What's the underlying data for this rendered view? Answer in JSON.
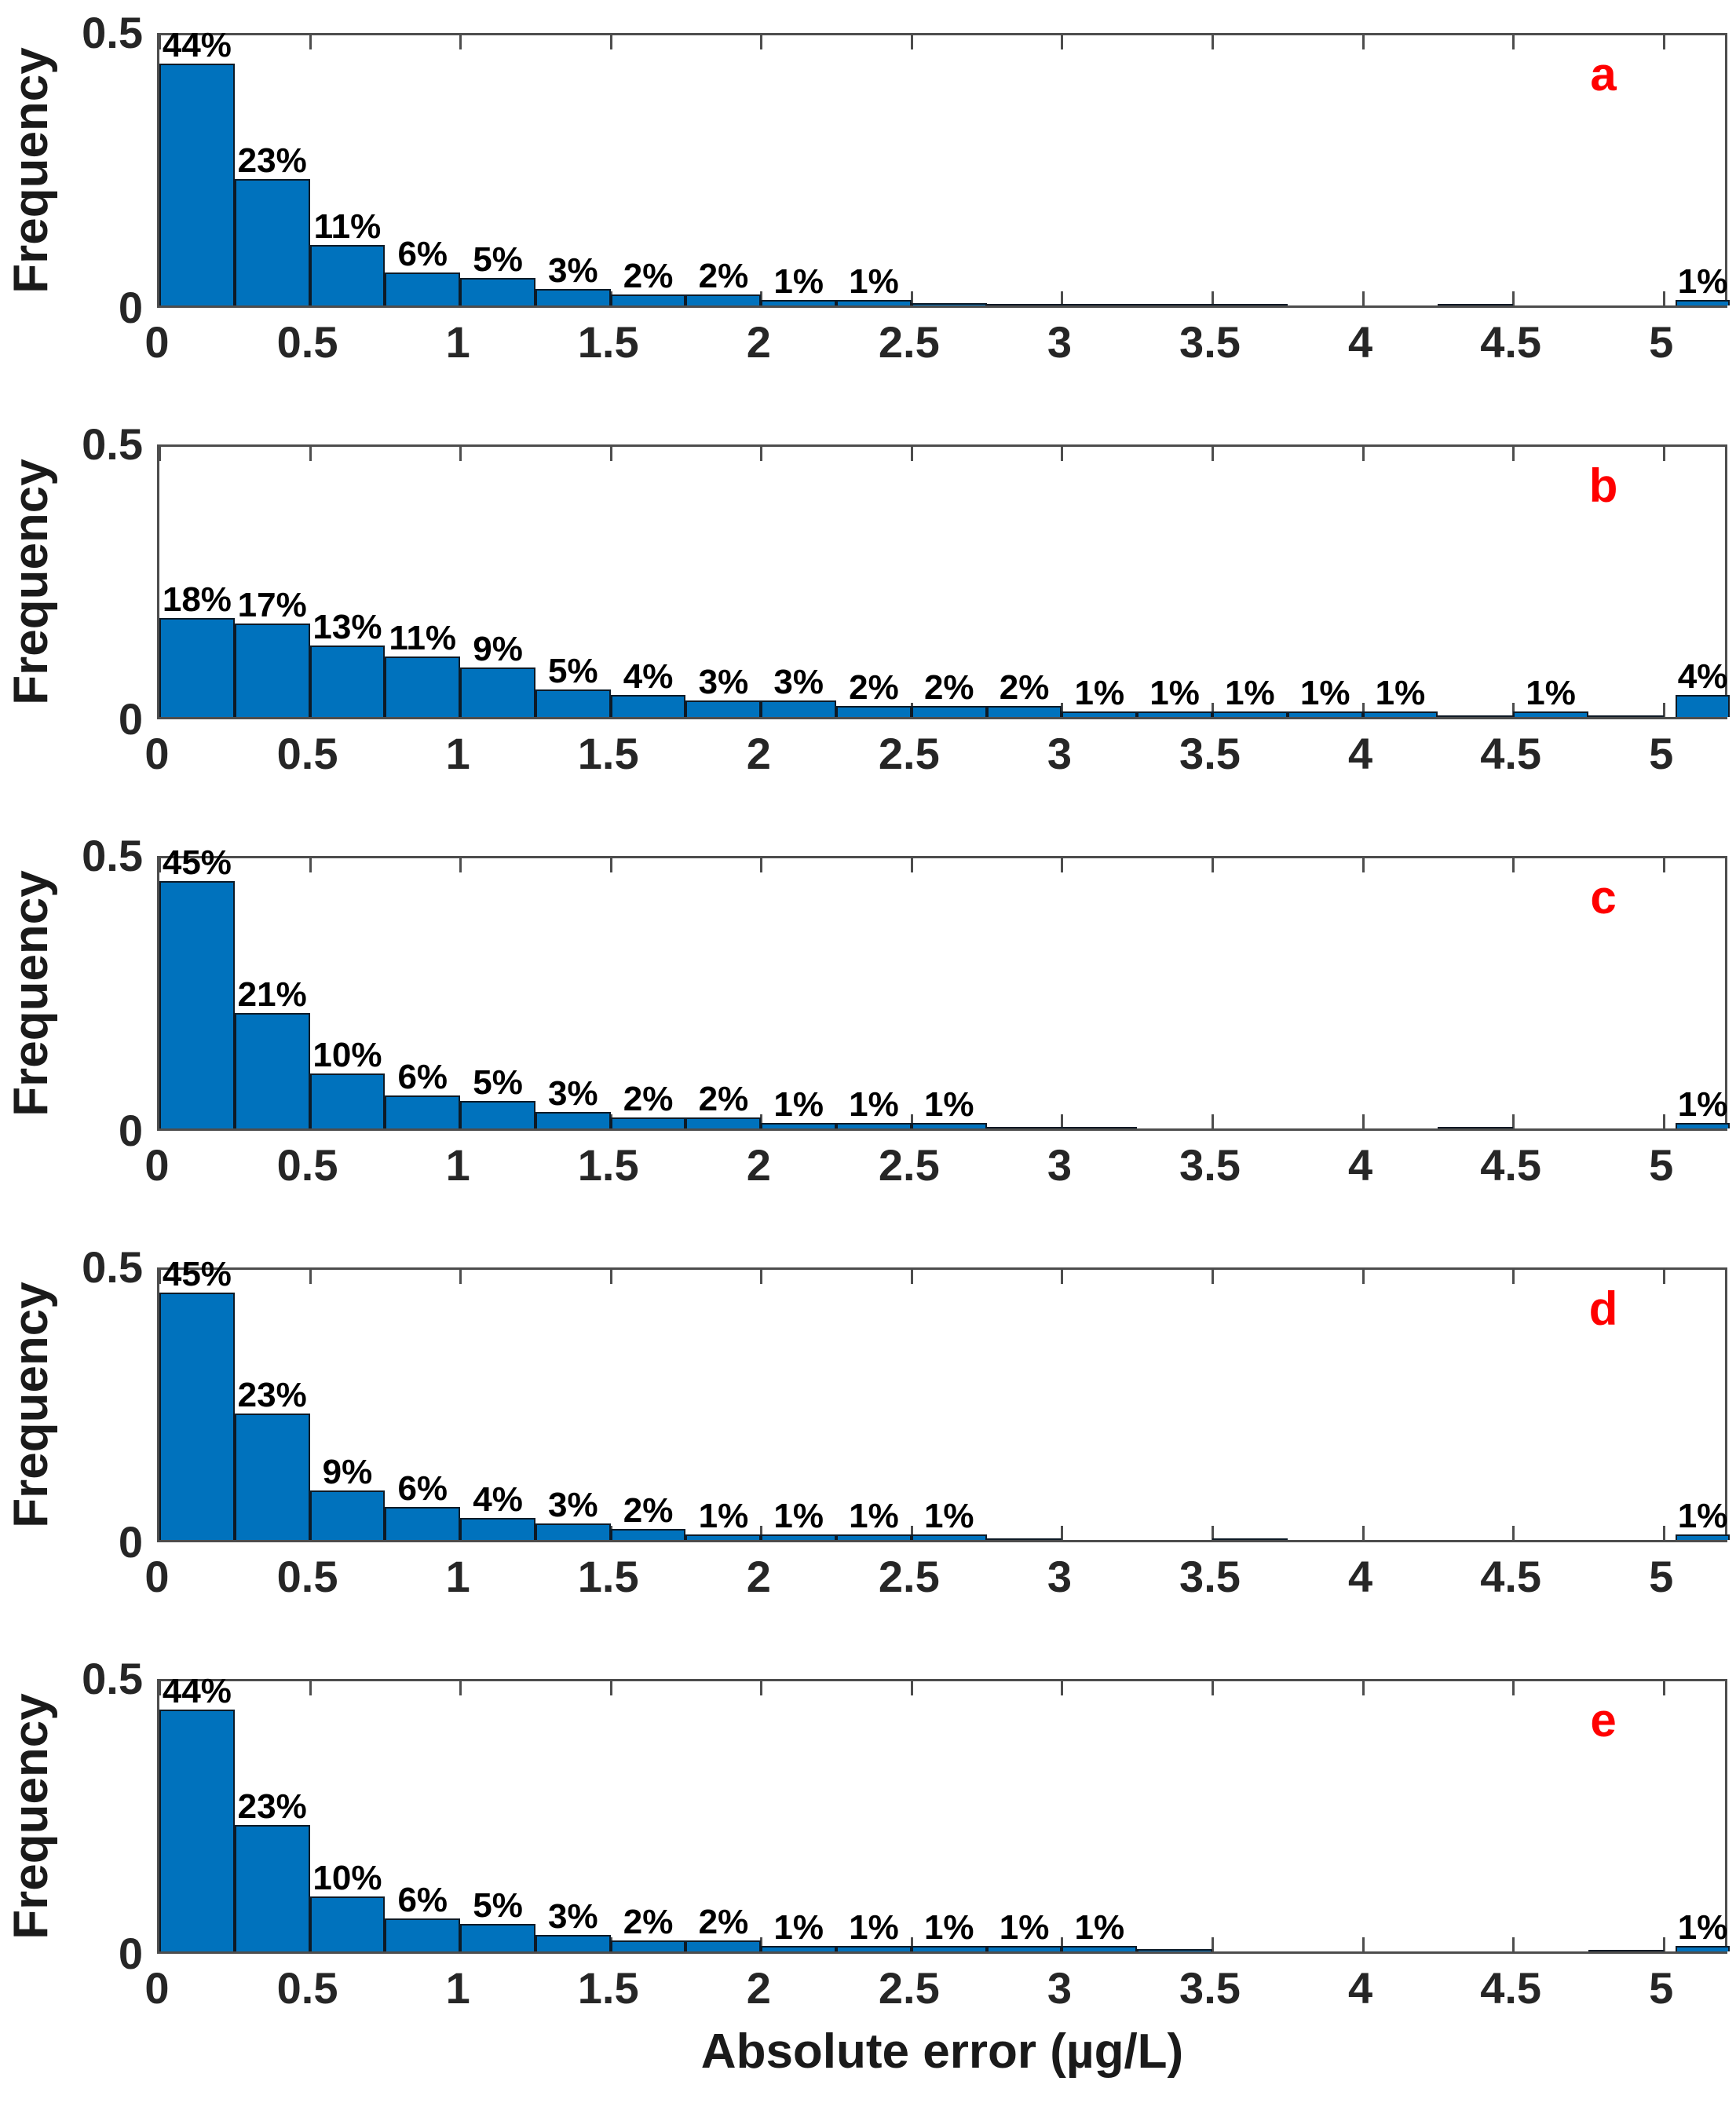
{
  "figure": {
    "xlabel": "Absolute error (µg/L)",
    "ylabel": "Frequency",
    "x_tick_labels": [
      "0",
      "0.5",
      "1",
      "1.5",
      "2",
      "2.5",
      "3",
      "3.5",
      "4",
      "4.5",
      "5"
    ],
    "x_tick_values": [
      0,
      0.5,
      1,
      1.5,
      2,
      2.5,
      3,
      3.5,
      4,
      4.5,
      5
    ],
    "y_tick_labels": [
      "0",
      "0.5"
    ],
    "colors": {
      "bar_face": "#0072BD",
      "bar_edge": "#0d1a26",
      "axis": "#4d4d4d",
      "tick_text": "#262626",
      "panel_letter": "#ff0000"
    }
  },
  "chart_data": [
    {
      "type": "bar",
      "panel_letter": "a",
      "title": "",
      "xlabel": "",
      "ylabel": "Frequency",
      "xlim": [
        0,
        5.22
      ],
      "ylim": [
        0,
        0.5
      ],
      "bin_width": 0.25,
      "grid": false,
      "bars": [
        {
          "x": 0.0,
          "f": 0.44,
          "label": "44%"
        },
        {
          "x": 0.25,
          "f": 0.23,
          "label": "23%"
        },
        {
          "x": 0.5,
          "f": 0.11,
          "label": "11%"
        },
        {
          "x": 0.75,
          "f": 0.06,
          "label": "6%"
        },
        {
          "x": 1.0,
          "f": 0.05,
          "label": "5%"
        },
        {
          "x": 1.25,
          "f": 0.03,
          "label": "3%"
        },
        {
          "x": 1.5,
          "f": 0.02,
          "label": "2%"
        },
        {
          "x": 1.75,
          "f": 0.02,
          "label": "2%"
        },
        {
          "x": 2.0,
          "f": 0.01,
          "label": "1%"
        },
        {
          "x": 2.25,
          "f": 0.01,
          "label": "1%"
        },
        {
          "x": 2.5,
          "f": 0.004
        },
        {
          "x": 2.75,
          "f": 0.003
        },
        {
          "x": 3.0,
          "f": 0.002
        },
        {
          "x": 3.25,
          "f": 0.003
        },
        {
          "x": 3.5,
          "f": 0.002
        },
        {
          "x": 4.25,
          "f": 0.003
        },
        {
          "x": 5.04,
          "w": 0.18,
          "f": 0.01,
          "label": "1%"
        }
      ]
    },
    {
      "type": "bar",
      "panel_letter": "b",
      "title": "",
      "xlabel": "",
      "ylabel": "Frequency",
      "xlim": [
        0,
        5.22
      ],
      "ylim": [
        0,
        0.5
      ],
      "bin_width": 0.25,
      "grid": false,
      "bars": [
        {
          "x": 0.0,
          "f": 0.18,
          "label": "18%"
        },
        {
          "x": 0.25,
          "f": 0.17,
          "label": "17%"
        },
        {
          "x": 0.5,
          "f": 0.13,
          "label": "13%"
        },
        {
          "x": 0.75,
          "f": 0.11,
          "label": "11%"
        },
        {
          "x": 1.0,
          "f": 0.09,
          "label": "9%"
        },
        {
          "x": 1.25,
          "f": 0.05,
          "label": "5%"
        },
        {
          "x": 1.5,
          "f": 0.04,
          "label": "4%"
        },
        {
          "x": 1.75,
          "f": 0.03,
          "label": "3%"
        },
        {
          "x": 2.0,
          "f": 0.03,
          "label": "3%"
        },
        {
          "x": 2.25,
          "f": 0.02,
          "label": "2%"
        },
        {
          "x": 2.5,
          "f": 0.02,
          "label": "2%"
        },
        {
          "x": 2.75,
          "f": 0.02,
          "label": "2%"
        },
        {
          "x": 3.0,
          "f": 0.01,
          "label": "1%"
        },
        {
          "x": 3.25,
          "f": 0.01,
          "label": "1%"
        },
        {
          "x": 3.5,
          "f": 0.01,
          "label": "1%"
        },
        {
          "x": 3.75,
          "f": 0.01,
          "label": "1%"
        },
        {
          "x": 4.0,
          "f": 0.01,
          "label": "1%"
        },
        {
          "x": 4.25,
          "f": 0.003
        },
        {
          "x": 4.5,
          "f": 0.01,
          "label": "1%"
        },
        {
          "x": 4.75,
          "f": 0.002
        },
        {
          "x": 5.04,
          "w": 0.18,
          "f": 0.04,
          "label": "4%"
        }
      ]
    },
    {
      "type": "bar",
      "panel_letter": "c",
      "title": "",
      "xlabel": "",
      "ylabel": "Frequency",
      "xlim": [
        0,
        5.22
      ],
      "ylim": [
        0,
        0.5
      ],
      "bin_width": 0.25,
      "grid": false,
      "bars": [
        {
          "x": 0.0,
          "f": 0.45,
          "label": "45%"
        },
        {
          "x": 0.25,
          "f": 0.21,
          "label": "21%"
        },
        {
          "x": 0.5,
          "f": 0.1,
          "label": "10%"
        },
        {
          "x": 0.75,
          "f": 0.06,
          "label": "6%"
        },
        {
          "x": 1.0,
          "f": 0.05,
          "label": "5%"
        },
        {
          "x": 1.25,
          "f": 0.03,
          "label": "3%"
        },
        {
          "x": 1.5,
          "f": 0.02,
          "label": "2%"
        },
        {
          "x": 1.75,
          "f": 0.02,
          "label": "2%"
        },
        {
          "x": 2.0,
          "f": 0.01,
          "label": "1%"
        },
        {
          "x": 2.25,
          "f": 0.01,
          "label": "1%"
        },
        {
          "x": 2.5,
          "f": 0.01,
          "label": "1%"
        },
        {
          "x": 2.75,
          "f": 0.002
        },
        {
          "x": 3.0,
          "f": 0.003
        },
        {
          "x": 4.25,
          "f": 0.002
        },
        {
          "x": 5.04,
          "w": 0.18,
          "f": 0.01,
          "label": "1%"
        }
      ]
    },
    {
      "type": "bar",
      "panel_letter": "d",
      "title": "",
      "xlabel": "",
      "ylabel": "Frequency",
      "xlim": [
        0,
        5.22
      ],
      "ylim": [
        0,
        0.5
      ],
      "bin_width": 0.25,
      "grid": false,
      "bars": [
        {
          "x": 0.0,
          "f": 0.45,
          "label": "45%"
        },
        {
          "x": 0.25,
          "f": 0.23,
          "label": "23%"
        },
        {
          "x": 0.5,
          "f": 0.09,
          "label": "9%"
        },
        {
          "x": 0.75,
          "f": 0.06,
          "label": "6%"
        },
        {
          "x": 1.0,
          "f": 0.04,
          "label": "4%"
        },
        {
          "x": 1.25,
          "f": 0.03,
          "label": "3%"
        },
        {
          "x": 1.5,
          "f": 0.02,
          "label": "2%"
        },
        {
          "x": 1.75,
          "f": 0.01,
          "label": "1%"
        },
        {
          "x": 2.0,
          "f": 0.01,
          "label": "1%"
        },
        {
          "x": 2.25,
          "f": 0.01,
          "label": "1%"
        },
        {
          "x": 2.5,
          "f": 0.01,
          "label": "1%"
        },
        {
          "x": 2.75,
          "f": 0.003
        },
        {
          "x": 3.5,
          "f": 0.002
        },
        {
          "x": 5.04,
          "w": 0.18,
          "f": 0.01,
          "label": "1%"
        }
      ]
    },
    {
      "type": "bar",
      "panel_letter": "e",
      "title": "",
      "xlabel": "Absolute error (µg/L)",
      "ylabel": "Frequency",
      "xlim": [
        0,
        5.22
      ],
      "ylim": [
        0,
        0.5
      ],
      "bin_width": 0.25,
      "grid": false,
      "bars": [
        {
          "x": 0.0,
          "f": 0.44,
          "label": "44%"
        },
        {
          "x": 0.25,
          "f": 0.23,
          "label": "23%"
        },
        {
          "x": 0.5,
          "f": 0.1,
          "label": "10%"
        },
        {
          "x": 0.75,
          "f": 0.06,
          "label": "6%"
        },
        {
          "x": 1.0,
          "f": 0.05,
          "label": "5%"
        },
        {
          "x": 1.25,
          "f": 0.03,
          "label": "3%"
        },
        {
          "x": 1.5,
          "f": 0.02,
          "label": "2%"
        },
        {
          "x": 1.75,
          "f": 0.02,
          "label": "2%"
        },
        {
          "x": 2.0,
          "f": 0.01,
          "label": "1%"
        },
        {
          "x": 2.25,
          "f": 0.01,
          "label": "1%"
        },
        {
          "x": 2.5,
          "f": 0.01,
          "label": "1%"
        },
        {
          "x": 2.75,
          "f": 0.01,
          "label": "1%"
        },
        {
          "x": 3.0,
          "f": 0.01,
          "label": "1%"
        },
        {
          "x": 3.25,
          "f": 0.004
        },
        {
          "x": 4.75,
          "f": 0.002
        },
        {
          "x": 5.04,
          "w": 0.18,
          "f": 0.01,
          "label": "1%"
        }
      ]
    }
  ]
}
